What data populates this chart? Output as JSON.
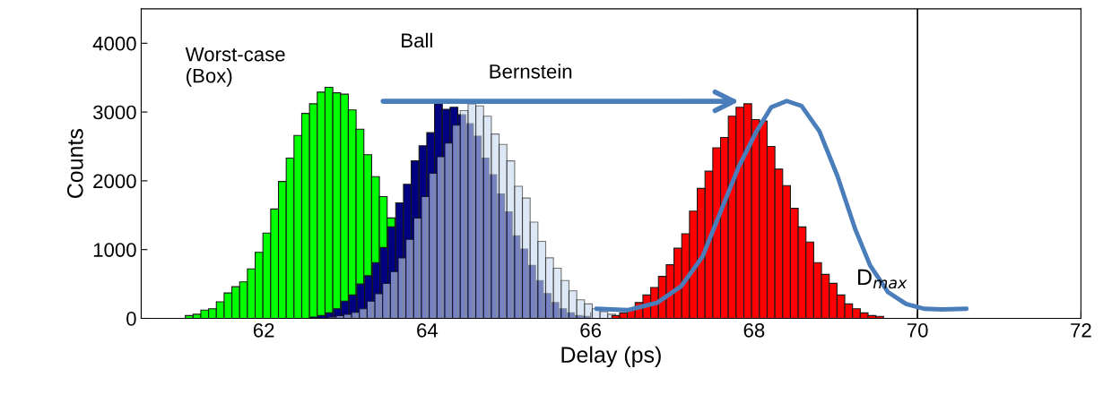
{
  "chart_data": {
    "type": "histogram",
    "xlabel": "Delay (ps)",
    "ylabel": "Counts",
    "xlim": [
      60.5,
      72
    ],
    "xticks": [
      62,
      64,
      66,
      68,
      70,
      72
    ],
    "ylim": [
      0,
      4500
    ],
    "yticks": [
      0,
      1000,
      2000,
      3000,
      4000
    ],
    "series": [
      {
        "name": "Worst-case\n(Box)",
        "color": "#00ff00",
        "bins": [
          61.04,
          61.135,
          61.23,
          61.325,
          61.42,
          61.515,
          61.61,
          61.705,
          61.8,
          61.895,
          61.99,
          62.085,
          62.18,
          62.275,
          62.37,
          62.465,
          62.56,
          62.655,
          62.75,
          62.845,
          62.94,
          63.035,
          63.13,
          63.225,
          63.32,
          63.415,
          63.51,
          63.605,
          63.7,
          63.795,
          63.89,
          63.985,
          64.08,
          64.175,
          64.27,
          64.365
        ],
        "values": [
          40,
          60,
          120,
          140,
          240,
          370,
          460,
          530,
          720,
          960,
          1240,
          1590,
          1990,
          2330,
          2660,
          2980,
          3120,
          3290,
          3360,
          3280,
          3260,
          3030,
          2750,
          2380,
          2060,
          1770,
          1460,
          null,
          null,
          null,
          null,
          null,
          null,
          null,
          null
        ]
      },
      {
        "name": "Ball",
        "color": "#000080",
        "bins": [
          62.57,
          62.665,
          62.76,
          62.855,
          62.95,
          63.045,
          63.14,
          63.235,
          63.33,
          63.425,
          63.52,
          63.615,
          63.71,
          63.805,
          63.9,
          63.995,
          64.09,
          64.185,
          64.28,
          64.375,
          64.47,
          64.565,
          64.66,
          64.755,
          64.85,
          64.945,
          65.04,
          65.135,
          65.23,
          65.325,
          65.42,
          65.515,
          65.61,
          65.705,
          65.8,
          65.895,
          65.99
        ],
        "values": [
          20,
          40,
          80,
          140,
          250,
          340,
          500,
          620,
          810,
          1030,
          1330,
          1680,
          1950,
          2290,
          2510,
          2700,
          3120,
          3040,
          3070,
          2960,
          2830,
          2650,
          2330,
          2090,
          1810,
          1550,
          1200,
          1010,
          770,
          550,
          360,
          230,
          140,
          80,
          40,
          30
        ]
      },
      {
        "name": "Bernstein",
        "color": "#c6d9f1",
        "bins": [
          62.79,
          62.885,
          62.98,
          63.075,
          63.17,
          63.265,
          63.36,
          63.455,
          63.55,
          63.645,
          63.74,
          63.835,
          63.93,
          64.025,
          64.12,
          64.215,
          64.31,
          64.405,
          64.5,
          64.595,
          64.69,
          64.785,
          64.88,
          64.975,
          65.07,
          65.165,
          65.26,
          65.355,
          65.45,
          65.545,
          65.64,
          65.735,
          65.83,
          65.925,
          66.02,
          66.115,
          66.21,
          66.305,
          66.4
        ],
        "values": [
          20,
          40,
          60,
          90,
          140,
          250,
          360,
          510,
          680,
          880,
          1150,
          1460,
          1770,
          2110,
          2350,
          2550,
          2810,
          3020,
          3120,
          3090,
          2940,
          2680,
          2530,
          2290,
          1920,
          1750,
          1400,
          1120,
          880,
          730,
          550,
          400,
          270,
          210,
          140,
          100,
          60,
          null
        ]
      },
      {
        "color": "#ff0000",
        "bins": [
          66.26,
          66.355,
          66.45,
          66.545,
          66.64,
          66.735,
          66.83,
          66.925,
          67.02,
          67.115,
          67.21,
          67.305,
          67.4,
          67.495,
          67.59,
          67.685,
          67.78,
          67.875,
          67.97,
          68.065,
          68.16,
          68.255,
          68.35,
          68.445,
          68.54,
          68.635,
          68.73,
          68.825,
          68.92,
          69.015,
          69.11,
          69.205,
          69.3,
          69.395,
          69.49,
          69.585
        ],
        "values": [
          40,
          80,
          140,
          230,
          340,
          450,
          610,
          780,
          1020,
          1230,
          1560,
          1890,
          2140,
          2480,
          2630,
          2940,
          3070,
          3120,
          2890,
          2870,
          2500,
          2170,
          1930,
          1600,
          1330,
          1110,
          810,
          640,
          510,
          340,
          210,
          140,
          80,
          40,
          30
        ]
      },
      {
        "type": "line",
        "color": "#4a7ebb",
        "x": [
          66.07,
          66.45,
          66.82,
          67.11,
          67.37,
          67.59,
          67.81,
          68.03,
          68.21,
          68.4,
          68.58,
          68.8,
          69.02,
          69.24,
          69.42,
          69.64,
          69.86,
          70.08,
          70.3,
          70.6
        ],
        "values": [
          140,
          120,
          230,
          470,
          900,
          1550,
          2200,
          2720,
          3070,
          3160,
          3090,
          2720,
          2070,
          1290,
          770,
          380,
          210,
          140,
          130,
          140
        ]
      }
    ],
    "ref_lines": [
      {
        "axis": "x",
        "value": 70,
        "label": "D$_{max}$",
        "color": "#000000"
      }
    ]
  }
}
